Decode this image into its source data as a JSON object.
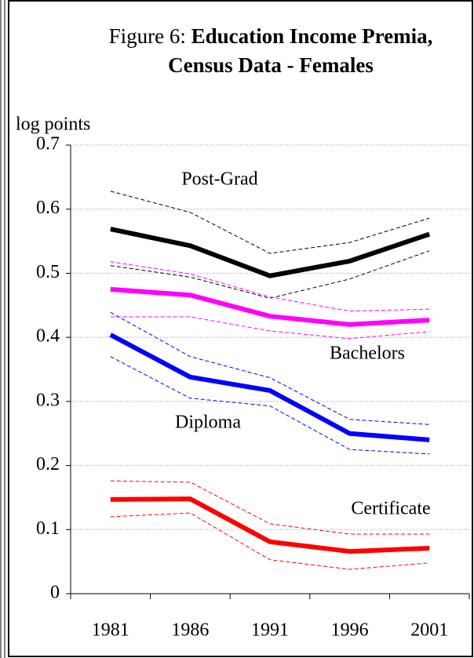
{
  "chart_data": {
    "type": "line",
    "title_prefix": "Figure 6: ",
    "title": "Education Income Premia, Census Data - Females",
    "y_label": "log points",
    "categories": [
      "1981",
      "1986",
      "1991",
      "1996",
      "2001"
    ],
    "ylim": [
      0,
      0.7
    ],
    "yticks": [
      0,
      0.1,
      0.2,
      0.3,
      0.4,
      0.5,
      0.6,
      0.7
    ],
    "grid": true,
    "series": [
      {
        "name": "Post-Grad",
        "color": "#000000",
        "values": [
          0.569,
          0.543,
          0.496,
          0.519,
          0.561
        ],
        "upper": [
          0.628,
          0.595,
          0.531,
          0.548,
          0.586
        ],
        "lower": [
          0.512,
          0.494,
          0.461,
          0.491,
          0.535
        ]
      },
      {
        "name": "Bachelors",
        "color": "#ff00ff",
        "values": [
          0.475,
          0.466,
          0.433,
          0.42,
          0.427
        ],
        "upper": [
          0.518,
          0.499,
          0.463,
          0.441,
          0.444
        ],
        "lower": [
          0.432,
          0.432,
          0.41,
          0.398,
          0.409
        ]
      },
      {
        "name": "Diploma",
        "color": "#0000ff",
        "values": [
          0.404,
          0.338,
          0.317,
          0.25,
          0.24
        ],
        "upper": [
          0.439,
          0.37,
          0.337,
          0.272,
          0.264
        ],
        "lower": [
          0.37,
          0.305,
          0.293,
          0.225,
          0.218
        ]
      },
      {
        "name": "Certificate",
        "color": "#ff0000",
        "values": [
          0.147,
          0.148,
          0.081,
          0.066,
          0.071
        ],
        "upper": [
          0.176,
          0.174,
          0.109,
          0.093,
          0.093
        ],
        "lower": [
          0.12,
          0.126,
          0.053,
          0.038,
          0.048
        ]
      }
    ]
  }
}
